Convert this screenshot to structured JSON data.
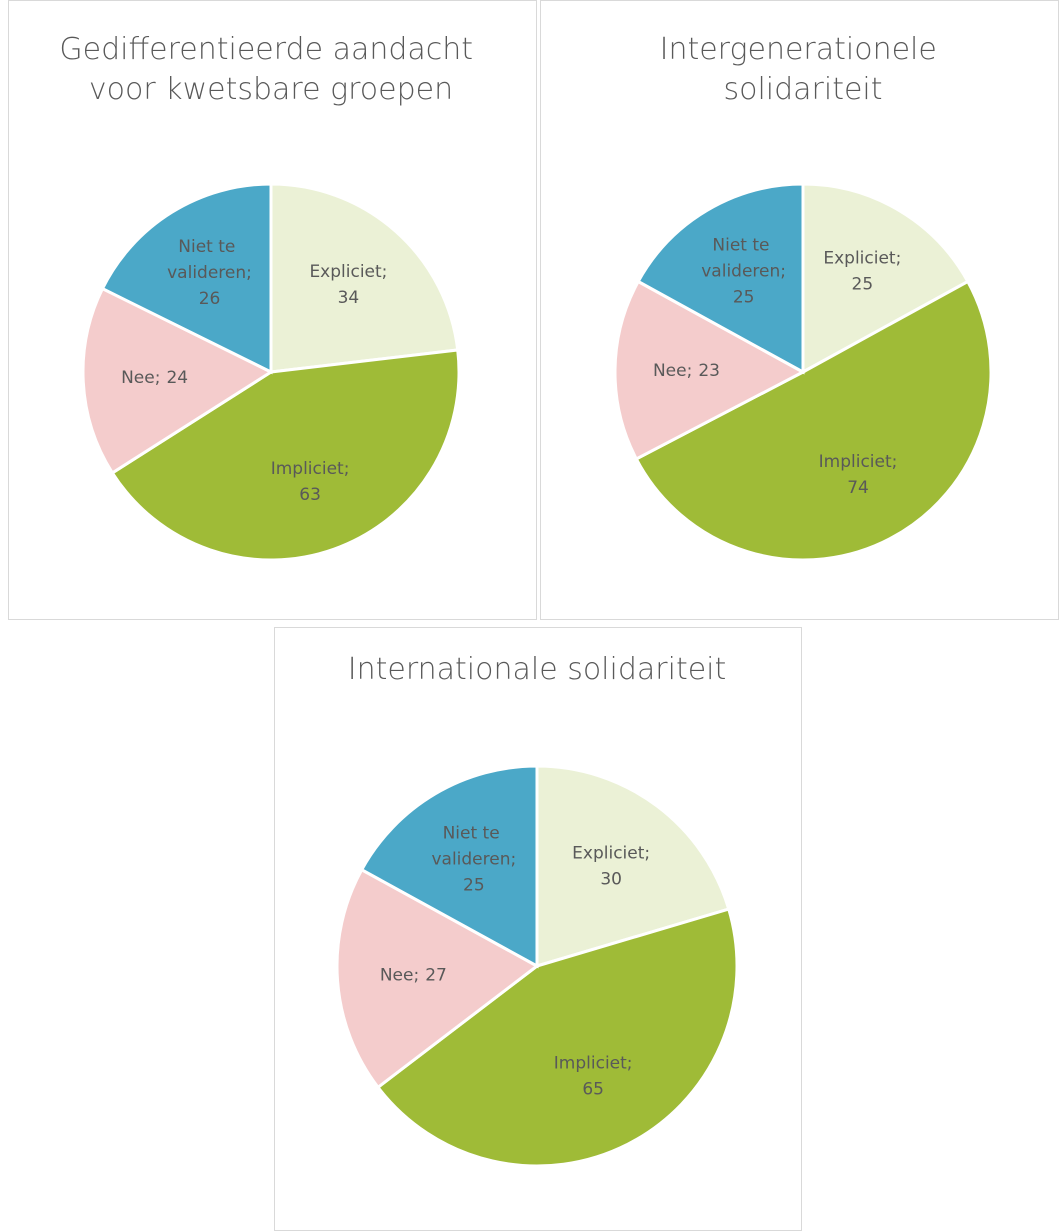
{
  "chart_data": [
    {
      "type": "pie",
      "title": "Gedifferentieerde aandacht voor kwetsbare groepen",
      "categories": [
        "Expliciet;",
        "Impliciet;",
        "Nee;",
        "Niet te valideren;"
      ],
      "values": [
        34,
        63,
        24,
        26
      ],
      "colors": [
        "#ebf1d6",
        "#9fbb37",
        "#f4cccc",
        "#4ba8c8"
      ]
    },
    {
      "type": "pie",
      "title": "Intergenerationele solidariteit",
      "categories": [
        "Expliciet;",
        "Impliciet;",
        "Nee;",
        "Niet te valideren;"
      ],
      "values": [
        25,
        74,
        23,
        25
      ],
      "colors": [
        "#ebf1d6",
        "#9fbb37",
        "#f4cccc",
        "#4ba8c8"
      ]
    },
    {
      "type": "pie",
      "title": "Internationale solidariteit",
      "categories": [
        "Expliciet;",
        "Impliciet;",
        "Nee;",
        "Niet te valideren;"
      ],
      "values": [
        30,
        65,
        27,
        25
      ],
      "colors": [
        "#ebf1d6",
        "#9fbb37",
        "#f4cccc",
        "#4ba8c8"
      ]
    }
  ]
}
